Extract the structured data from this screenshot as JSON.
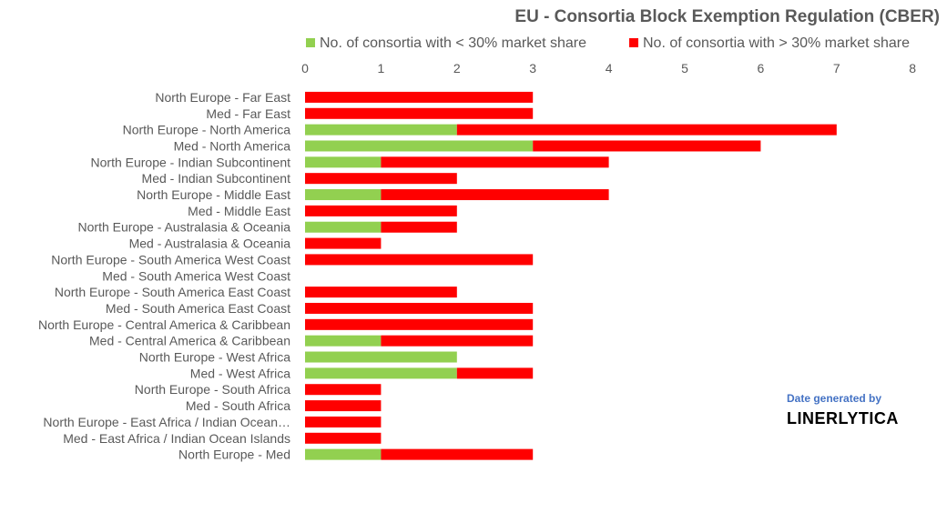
{
  "chart_data": {
    "type": "bar",
    "orientation": "horizontal",
    "stacked": true,
    "title": "EU - Consortia Block Exemption Regulation (CBER)",
    "categories": [
      "North Europe - Far East",
      "Med - Far East",
      "North Europe - North America",
      "Med - North America",
      "North Europe - Indian Subcontinent",
      "Med - Indian Subcontinent",
      "North Europe - Middle East",
      "Med - Middle East",
      "North Europe - Australasia & Oceania",
      "Med - Australasia & Oceania",
      "North Europe - South America West Coast",
      "Med - South America West Coast",
      "North Europe - South America East Coast",
      "Med - South America East Coast",
      "North Europe - Central America & Caribbean",
      "Med - Central America & Caribbean",
      "North Europe - West Africa",
      "Med - West Africa",
      "North Europe - South Africa",
      "Med - South Africa",
      "North Europe - East Africa / Indian Ocean…",
      "Med - East Africa / Indian Ocean Islands",
      "North Europe - Med"
    ],
    "series": [
      {
        "name": "No. of consortia with < 30% market share",
        "color": "#92d050",
        "values": [
          0,
          0,
          2,
          3,
          1,
          0,
          1,
          0,
          1,
          0,
          0,
          0,
          0,
          0,
          0,
          1,
          2,
          2,
          0,
          0,
          0,
          0,
          1
        ]
      },
      {
        "name": "No. of consortia with > 30% market share",
        "color": "#ff0000",
        "values": [
          3,
          3,
          5,
          3,
          3,
          2,
          3,
          2,
          1,
          1,
          3,
          0,
          2,
          3,
          3,
          2,
          0,
          1,
          1,
          1,
          1,
          1,
          2
        ]
      }
    ],
    "xlim": [
      0,
      8
    ],
    "xticks": [
      "0",
      "1",
      "2",
      "3",
      "4",
      "5",
      "6",
      "7",
      "8"
    ],
    "xaxis_position": "top",
    "grid": false,
    "legend_position": "top"
  },
  "attribution": {
    "caption": "Date generated by",
    "brand": "LINERLYTICA"
  }
}
